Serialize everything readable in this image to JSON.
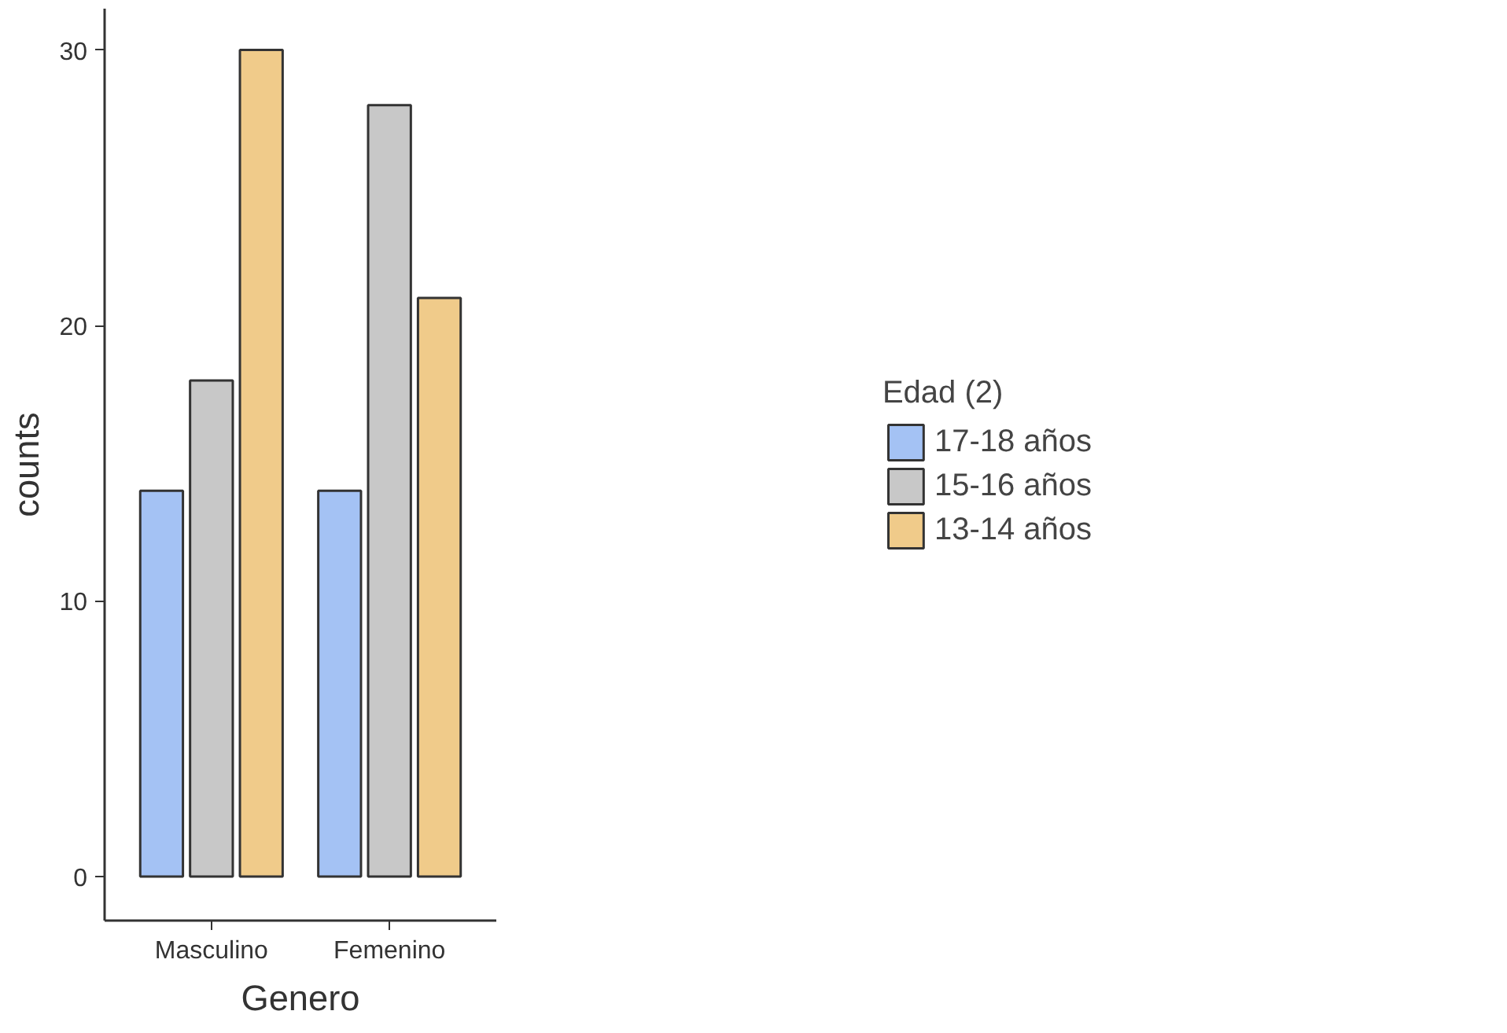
{
  "chart_data": {
    "type": "bar",
    "xlabel": "Genero",
    "ylabel": "counts",
    "legend_title": "Edad (2)",
    "categories": [
      "Masculino",
      "Femenino"
    ],
    "series": [
      {
        "name": "17-18 años",
        "color": "#a4c2f4",
        "values": [
          14,
          14
        ]
      },
      {
        "name": "15-16 años",
        "color": "#c8c8c8",
        "values": [
          18,
          28
        ]
      },
      {
        "name": "13-14 años",
        "color": "#f0cb8a",
        "values": [
          30,
          21
        ]
      }
    ],
    "ylim": [
      -1.6,
      31.5
    ],
    "yticks": [
      0,
      10,
      20,
      30
    ],
    "grid": false,
    "legend": "right"
  }
}
